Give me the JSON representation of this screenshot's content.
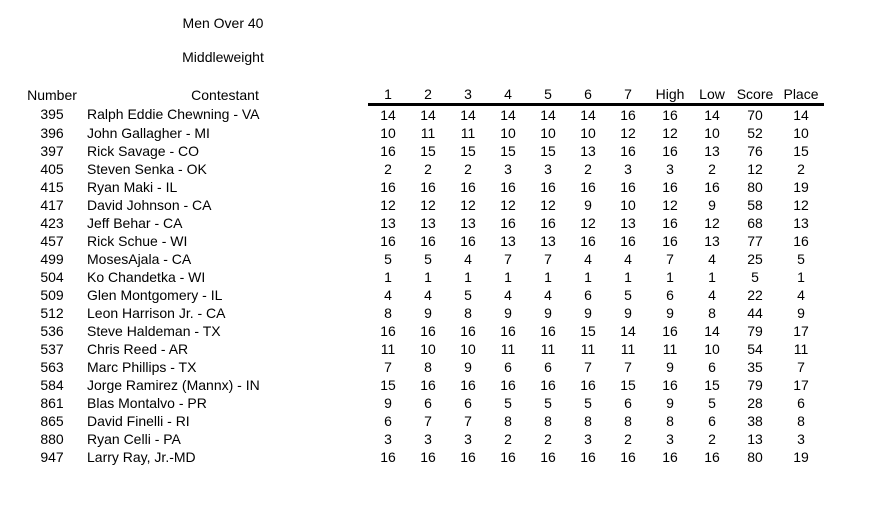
{
  "sheet": {
    "title": "Men Over 40",
    "subtitle": "Middleweight"
  },
  "table": {
    "headers": {
      "number": "Number",
      "contestant": "Contestant",
      "rounds": [
        "1",
        "2",
        "3",
        "4",
        "5",
        "6",
        "7"
      ],
      "high": "High",
      "low": "Low",
      "score": "Score",
      "place": "Place"
    },
    "rows": [
      {
        "number": "395",
        "contestant": "Ralph Eddie Chewning - VA",
        "scores": [
          14,
          14,
          14,
          14,
          14,
          14,
          16
        ],
        "high": 16,
        "low": 14,
        "score": 70,
        "place": 14
      },
      {
        "number": "396",
        "contestant": "John Gallagher - MI",
        "scores": [
          10,
          11,
          11,
          10,
          10,
          10,
          12
        ],
        "high": 12,
        "low": 10,
        "score": 52,
        "place": 10
      },
      {
        "number": "397",
        "contestant": "Rick Savage - CO",
        "scores": [
          16,
          15,
          15,
          15,
          15,
          13,
          16
        ],
        "high": 16,
        "low": 13,
        "score": 76,
        "place": 15
      },
      {
        "number": "405",
        "contestant": "Steven Senka - OK",
        "scores": [
          2,
          2,
          2,
          3,
          3,
          2,
          3
        ],
        "high": 3,
        "low": 2,
        "score": 12,
        "place": 2
      },
      {
        "number": "415",
        "contestant": "Ryan Maki - IL",
        "scores": [
          16,
          16,
          16,
          16,
          16,
          16,
          16
        ],
        "high": 16,
        "low": 16,
        "score": 80,
        "place": 19
      },
      {
        "number": "417",
        "contestant": "David Johnson - CA",
        "scores": [
          12,
          12,
          12,
          12,
          12,
          9,
          10
        ],
        "high": 12,
        "low": 9,
        "score": 58,
        "place": 12
      },
      {
        "number": "423",
        "contestant": "Jeff Behar - CA",
        "scores": [
          13,
          13,
          13,
          16,
          16,
          12,
          13
        ],
        "high": 16,
        "low": 12,
        "score": 68,
        "place": 13
      },
      {
        "number": "457",
        "contestant": "Rick Schue - WI",
        "scores": [
          16,
          16,
          16,
          13,
          13,
          16,
          16
        ],
        "high": 16,
        "low": 13,
        "score": 77,
        "place": 16
      },
      {
        "number": "499",
        "contestant": "MosesAjala - CA",
        "scores": [
          5,
          5,
          4,
          7,
          7,
          4,
          4
        ],
        "high": 7,
        "low": 4,
        "score": 25,
        "place": 5
      },
      {
        "number": "504",
        "contestant": "Ko Chandetka - WI",
        "scores": [
          1,
          1,
          1,
          1,
          1,
          1,
          1
        ],
        "high": 1,
        "low": 1,
        "score": 5,
        "place": 1
      },
      {
        "number": "509",
        "contestant": "Glen Montgomery - IL",
        "scores": [
          4,
          4,
          5,
          4,
          4,
          6,
          5
        ],
        "high": 6,
        "low": 4,
        "score": 22,
        "place": 4
      },
      {
        "number": "512",
        "contestant": "Leon Harrison Jr. - CA",
        "scores": [
          8,
          9,
          8,
          9,
          9,
          9,
          9
        ],
        "high": 9,
        "low": 8,
        "score": 44,
        "place": 9
      },
      {
        "number": "536",
        "contestant": "Steve Haldeman - TX",
        "scores": [
          16,
          16,
          16,
          16,
          16,
          15,
          14
        ],
        "high": 16,
        "low": 14,
        "score": 79,
        "place": 17
      },
      {
        "number": "537",
        "contestant": "Chris Reed - AR",
        "scores": [
          11,
          10,
          10,
          11,
          11,
          11,
          11
        ],
        "high": 11,
        "low": 10,
        "score": 54,
        "place": 11
      },
      {
        "number": "563",
        "contestant": "Marc Phillips - TX",
        "scores": [
          7,
          8,
          9,
          6,
          6,
          7,
          7
        ],
        "high": 9,
        "low": 6,
        "score": 35,
        "place": 7
      },
      {
        "number": "584",
        "contestant": "Jorge Ramirez (Mannx) - IN",
        "scores": [
          15,
          16,
          16,
          16,
          16,
          16,
          15
        ],
        "high": 16,
        "low": 15,
        "score": 79,
        "place": 17
      },
      {
        "number": "861",
        "contestant": "Blas Montalvo - PR",
        "scores": [
          9,
          6,
          6,
          5,
          5,
          5,
          6
        ],
        "high": 9,
        "low": 5,
        "score": 28,
        "place": 6
      },
      {
        "number": "865",
        "contestant": "David Finelli - RI",
        "scores": [
          6,
          7,
          7,
          8,
          8,
          8,
          8
        ],
        "high": 8,
        "low": 6,
        "score": 38,
        "place": 8
      },
      {
        "number": "880",
        "contestant": "Ryan Celli - PA",
        "scores": [
          3,
          3,
          3,
          2,
          2,
          3,
          2
        ],
        "high": 3,
        "low": 2,
        "score": 13,
        "place": 3
      },
      {
        "number": "947",
        "contestant": "Larry Ray, Jr.-MD",
        "scores": [
          16,
          16,
          16,
          16,
          16,
          16,
          16
        ],
        "high": 16,
        "low": 16,
        "score": 80,
        "place": 19
      }
    ]
  }
}
